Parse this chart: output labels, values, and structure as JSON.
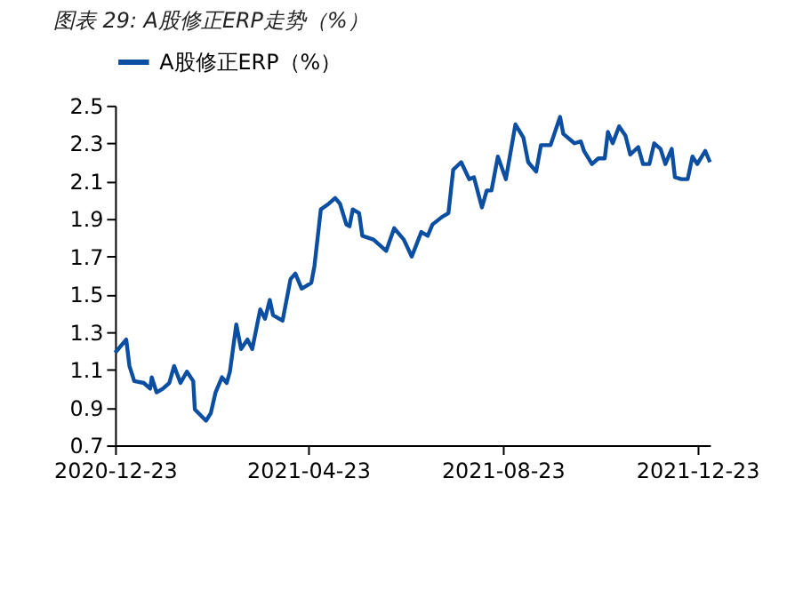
{
  "chart_data": {
    "type": "line",
    "title": "图表 29: A股修正ERP走势（%）",
    "legend": "top",
    "x": [
      "2020-12-23",
      "2020-12-30",
      "2021-01-01",
      "2021-01-04",
      "2021-01-10",
      "2021-01-14",
      "2021-01-15",
      "2021-01-18",
      "2021-01-22",
      "2021-01-26",
      "2021-01-29",
      "2021-02-02",
      "2021-02-06",
      "2021-02-10",
      "2021-02-11",
      "2021-02-18",
      "2021-02-21",
      "2021-02-24",
      "2021-02-28",
      "2021-03-03",
      "2021-03-05",
      "2021-03-09",
      "2021-03-12",
      "2021-03-16",
      "2021-03-19",
      "2021-03-24",
      "2021-03-27",
      "2021-03-30",
      "2021-04-01",
      "2021-04-07",
      "2021-04-12",
      "2021-04-15",
      "2021-04-19",
      "2021-04-25",
      "2021-04-27",
      "2021-05-01",
      "2021-05-06",
      "2021-05-10",
      "2021-05-13",
      "2021-05-17",
      "2021-05-19",
      "2021-05-21",
      "2021-05-25",
      "2021-05-27",
      "2021-06-03",
      "2021-06-11",
      "2021-06-16",
      "2021-06-22",
      "2021-06-27",
      "2021-07-03",
      "2021-07-07",
      "2021-07-10",
      "2021-07-16",
      "2021-07-20",
      "2021-07-23",
      "2021-07-28",
      "2021-08-02",
      "2021-08-05",
      "2021-08-10",
      "2021-08-13",
      "2021-08-16",
      "2021-08-20",
      "2021-08-25",
      "2021-08-31",
      "2021-09-05",
      "2021-09-08",
      "2021-09-13",
      "2021-09-16",
      "2021-09-22",
      "2021-09-28",
      "2021-09-30",
      "2021-10-07",
      "2021-10-11",
      "2021-10-13",
      "2021-10-18",
      "2021-10-22",
      "2021-10-26",
      "2021-10-28",
      "2021-10-31",
      "2021-11-04",
      "2021-11-08",
      "2021-11-11",
      "2021-11-16",
      "2021-11-19",
      "2021-11-23",
      "2021-11-26",
      "2021-11-30",
      "2021-12-03",
      "2021-12-07",
      "2021-12-09",
      "2021-12-13",
      "2021-12-17",
      "2021-12-20",
      "2021-12-23",
      "2021-12-28",
      "2021-12-31"
    ],
    "series": [
      {
        "name": "A股修正ERP（%）",
        "color": "#0b4ea2",
        "values": [
          1.19,
          1.26,
          1.12,
          1.04,
          1.03,
          1.0,
          1.06,
          0.98,
          1.0,
          1.03,
          1.12,
          1.03,
          1.09,
          1.04,
          0.89,
          0.83,
          0.87,
          0.98,
          1.06,
          1.03,
          1.09,
          1.34,
          1.21,
          1.26,
          1.21,
          1.42,
          1.37,
          1.47,
          1.39,
          1.36,
          1.58,
          1.61,
          1.53,
          1.56,
          1.65,
          1.95,
          1.98,
          2.01,
          1.98,
          1.87,
          1.86,
          1.95,
          1.93,
          1.81,
          1.79,
          1.73,
          1.85,
          1.79,
          1.7,
          1.83,
          1.81,
          1.87,
          1.91,
          1.93,
          2.16,
          2.2,
          2.11,
          2.12,
          1.96,
          2.05,
          2.05,
          2.23,
          2.11,
          2.4,
          2.33,
          2.2,
          2.15,
          2.29,
          2.29,
          2.44,
          2.35,
          2.3,
          2.31,
          2.26,
          2.19,
          2.22,
          2.22,
          2.36,
          2.3,
          2.39,
          2.34,
          2.24,
          2.28,
          2.19,
          2.19,
          2.3,
          2.27,
          2.19,
          2.27,
          2.12,
          2.11,
          2.11,
          2.23,
          2.19,
          2.26,
          2.2
        ]
      }
    ],
    "xlim": [
      "2020-12-23",
      "2021-12-31"
    ],
    "xticks": [
      "2020-12-23",
      "2021-04-23",
      "2021-08-23",
      "2021-12-23"
    ],
    "ylim": [
      0.7,
      2.5
    ],
    "yticks": [
      0.7,
      0.9,
      1.1,
      1.3,
      1.5,
      1.7,
      1.9,
      2.1,
      2.3,
      2.5
    ],
    "grid": false,
    "marker": "none",
    "line_style": "solid"
  }
}
